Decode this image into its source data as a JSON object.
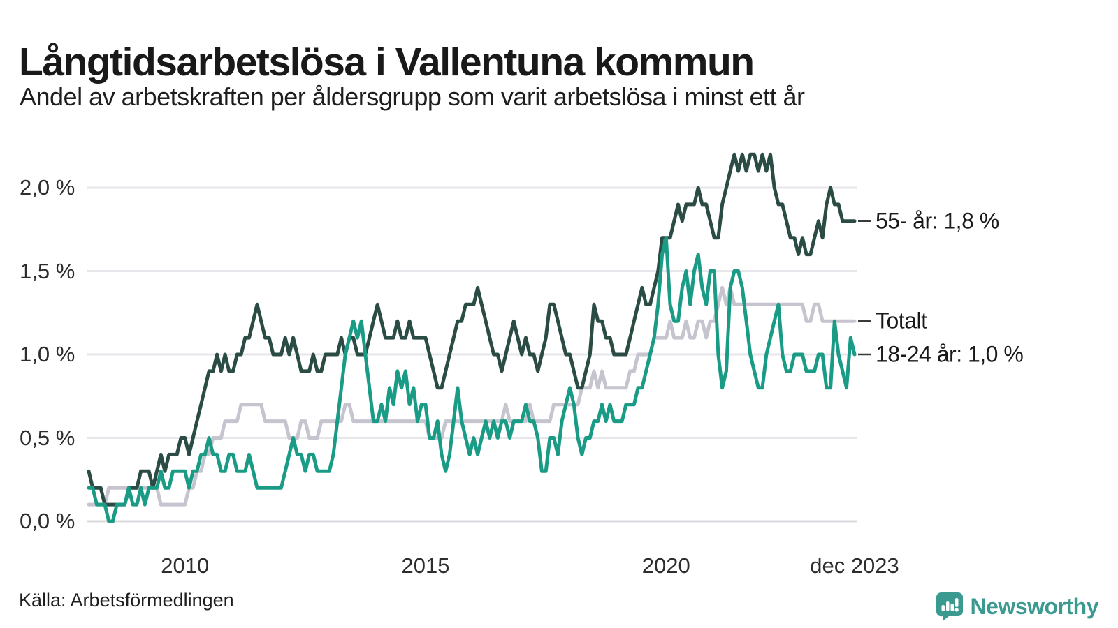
{
  "header": {
    "title": "Långtidsarbetslösa i Vallentuna kommun",
    "subtitle": "Andel av arbetskraften per åldersgrupp som varit arbetslösa i minst ett år"
  },
  "footer": {
    "source": "Källa: Arbetsförmedlingen",
    "brand": "Newsworthy"
  },
  "colors": {
    "series_55": "#2b4c45",
    "series_total": "#c6c4ce",
    "series_1824": "#1a9b86",
    "grid": "#e7e6ea",
    "grid_zero": "#dbdade",
    "connector": "#3a3a3a",
    "brand_teal": "#3b9a90"
  },
  "chart_data": {
    "type": "line",
    "title": "Långtidsarbetslösa i Vallentuna kommun",
    "subtitle": "Andel av arbetskraften per åldersgrupp som varit arbetslösa i minst ett år",
    "x_start_year": 2008,
    "x_end_year": 2023.917,
    "points_per_year": 12,
    "ylim": [
      0,
      2.3
    ],
    "grid": "horizontal-only",
    "legend_position": "right-end-labels",
    "y_ticks": [
      "0,0 %",
      "0,5 %",
      "1,0 %",
      "1,5 %",
      "2,0 %"
    ],
    "y_tick_values": [
      0,
      0.5,
      1.0,
      1.5,
      2.0
    ],
    "x_ticks": [
      "2010",
      "2015",
      "2020",
      "dec 2023"
    ],
    "x_tick_values": [
      2010,
      2015,
      2020,
      2023.917
    ],
    "draw_order": [
      1,
      0,
      2
    ],
    "series": [
      {
        "name": "55- år",
        "end_label": "55- år: 1,8 %",
        "color": "#2b4c45",
        "values": [
          0.3,
          0.2,
          0.2,
          0.2,
          0.1,
          0.1,
          0.1,
          0.1,
          0.1,
          0.1,
          0.2,
          0.2,
          0.2,
          0.3,
          0.3,
          0.3,
          0.2,
          0.3,
          0.4,
          0.3,
          0.4,
          0.4,
          0.4,
          0.5,
          0.5,
          0.4,
          0.5,
          0.6,
          0.7,
          0.8,
          0.9,
          0.9,
          1.0,
          0.9,
          1.0,
          0.9,
          0.9,
          1.0,
          1.0,
          1.1,
          1.1,
          1.2,
          1.3,
          1.2,
          1.1,
          1.1,
          1.0,
          1.0,
          1.0,
          1.1,
          1.0,
          1.1,
          1.0,
          0.9,
          0.9,
          0.9,
          1.0,
          0.9,
          0.9,
          1.0,
          1.0,
          1.0,
          1.0,
          1.1,
          1.0,
          1.1,
          1.1,
          1.0,
          1.0,
          1.0,
          1.1,
          1.2,
          1.3,
          1.2,
          1.1,
          1.1,
          1.1,
          1.2,
          1.1,
          1.1,
          1.2,
          1.1,
          1.1,
          1.1,
          1.1,
          1.0,
          0.9,
          0.8,
          0.8,
          0.9,
          1.0,
          1.1,
          1.2,
          1.2,
          1.3,
          1.3,
          1.3,
          1.4,
          1.3,
          1.2,
          1.1,
          1.0,
          1.0,
          0.9,
          1.0,
          1.1,
          1.2,
          1.1,
          1.0,
          1.1,
          1.0,
          1.0,
          0.9,
          1.0,
          1.1,
          1.3,
          1.3,
          1.2,
          1.1,
          1.0,
          1.0,
          0.9,
          0.8,
          0.8,
          0.9,
          1.0,
          1.3,
          1.2,
          1.2,
          1.1,
          1.1,
          1.0,
          1.0,
          1.0,
          1.0,
          1.1,
          1.2,
          1.3,
          1.4,
          1.3,
          1.3,
          1.4,
          1.5,
          1.7,
          1.7,
          1.7,
          1.8,
          1.9,
          1.8,
          1.9,
          1.9,
          1.9,
          2.0,
          1.9,
          1.9,
          1.8,
          1.7,
          1.7,
          1.9,
          2.0,
          2.1,
          2.2,
          2.1,
          2.2,
          2.1,
          2.2,
          2.2,
          2.1,
          2.2,
          2.1,
          2.2,
          2.0,
          1.9,
          1.9,
          1.8,
          1.7,
          1.7,
          1.6,
          1.7,
          1.6,
          1.6,
          1.7,
          1.8,
          1.7,
          1.9,
          2.0,
          1.9,
          1.9,
          1.8,
          1.8,
          1.8,
          1.8
        ]
      },
      {
        "name": "Totalt",
        "end_label": "Totalt",
        "color": "#c6c4ce",
        "values": [
          0.1,
          0.1,
          0.1,
          0.1,
          0.1,
          0.2,
          0.2,
          0.2,
          0.2,
          0.2,
          0.2,
          0.2,
          0.2,
          0.2,
          0.2,
          0.2,
          0.2,
          0.2,
          0.1,
          0.1,
          0.1,
          0.1,
          0.1,
          0.1,
          0.1,
          0.2,
          0.2,
          0.3,
          0.3,
          0.4,
          0.4,
          0.5,
          0.5,
          0.5,
          0.6,
          0.6,
          0.6,
          0.6,
          0.7,
          0.7,
          0.7,
          0.7,
          0.7,
          0.7,
          0.6,
          0.6,
          0.6,
          0.6,
          0.6,
          0.6,
          0.5,
          0.5,
          0.5,
          0.6,
          0.6,
          0.5,
          0.5,
          0.5,
          0.6,
          0.6,
          0.6,
          0.6,
          0.6,
          0.6,
          0.7,
          0.7,
          0.6,
          0.6,
          0.6,
          0.6,
          0.6,
          0.6,
          0.6,
          0.6,
          0.6,
          0.6,
          0.6,
          0.6,
          0.6,
          0.6,
          0.6,
          0.6,
          0.6,
          0.6,
          0.6,
          0.5,
          0.5,
          0.5,
          0.5,
          0.6,
          0.6,
          0.6,
          0.6,
          0.6,
          0.6,
          0.6,
          0.6,
          0.6,
          0.6,
          0.6,
          0.6,
          0.6,
          0.6,
          0.6,
          0.7,
          0.6,
          0.6,
          0.6,
          0.6,
          0.6,
          0.7,
          0.6,
          0.6,
          0.6,
          0.6,
          0.6,
          0.7,
          0.7,
          0.7,
          0.7,
          0.7,
          0.7,
          0.7,
          0.8,
          0.8,
          0.8,
          0.9,
          0.8,
          0.9,
          0.8,
          0.8,
          0.8,
          0.8,
          0.8,
          0.8,
          0.9,
          0.9,
          1.0,
          1.0,
          1.0,
          1.0,
          1.1,
          1.1,
          1.1,
          1.1,
          1.2,
          1.1,
          1.1,
          1.1,
          1.2,
          1.1,
          1.1,
          1.2,
          1.2,
          1.1,
          1.2,
          1.2,
          1.3,
          1.4,
          1.3,
          1.4,
          1.3,
          1.3,
          1.3,
          1.3,
          1.3,
          1.3,
          1.3,
          1.3,
          1.3,
          1.3,
          1.3,
          1.3,
          1.3,
          1.3,
          1.3,
          1.3,
          1.3,
          1.3,
          1.2,
          1.2,
          1.3,
          1.3,
          1.2,
          1.2,
          1.2,
          1.2,
          1.2,
          1.2,
          1.2,
          1.2,
          1.2
        ]
      },
      {
        "name": "18-24 år",
        "end_label": "18-24 år: 1,0 %",
        "color": "#1a9b86",
        "values": [
          0.2,
          0.2,
          0.1,
          0.1,
          0.1,
          0.0,
          0.0,
          0.1,
          0.1,
          0.1,
          0.2,
          0.1,
          0.1,
          0.2,
          0.1,
          0.2,
          0.2,
          0.2,
          0.3,
          0.2,
          0.2,
          0.3,
          0.3,
          0.3,
          0.3,
          0.2,
          0.3,
          0.3,
          0.4,
          0.4,
          0.5,
          0.4,
          0.4,
          0.3,
          0.3,
          0.4,
          0.4,
          0.3,
          0.3,
          0.3,
          0.4,
          0.3,
          0.2,
          0.2,
          0.2,
          0.2,
          0.2,
          0.2,
          0.2,
          0.3,
          0.4,
          0.5,
          0.4,
          0.4,
          0.3,
          0.4,
          0.4,
          0.3,
          0.3,
          0.3,
          0.3,
          0.4,
          0.6,
          0.8,
          1.0,
          1.1,
          1.2,
          1.1,
          1.2,
          1.0,
          0.8,
          0.6,
          0.6,
          0.7,
          0.6,
          0.8,
          0.7,
          0.9,
          0.8,
          0.9,
          0.7,
          0.8,
          0.6,
          0.7,
          0.7,
          0.5,
          0.5,
          0.6,
          0.4,
          0.3,
          0.4,
          0.6,
          0.8,
          0.6,
          0.5,
          0.4,
          0.5,
          0.4,
          0.5,
          0.6,
          0.5,
          0.6,
          0.5,
          0.6,
          0.6,
          0.5,
          0.6,
          0.6,
          0.6,
          0.7,
          0.6,
          0.6,
          0.5,
          0.3,
          0.3,
          0.5,
          0.5,
          0.4,
          0.6,
          0.7,
          0.8,
          0.7,
          0.5,
          0.4,
          0.5,
          0.5,
          0.6,
          0.6,
          0.7,
          0.6,
          0.7,
          0.6,
          0.6,
          0.6,
          0.7,
          0.7,
          0.7,
          0.8,
          0.8,
          0.9,
          1.0,
          1.1,
          1.3,
          1.6,
          1.7,
          1.3,
          1.2,
          1.2,
          1.4,
          1.5,
          1.3,
          1.5,
          1.6,
          1.4,
          1.3,
          1.5,
          1.5,
          1.0,
          0.8,
          0.9,
          1.4,
          1.5,
          1.5,
          1.4,
          1.2,
          1.0,
          0.9,
          0.8,
          0.8,
          1.0,
          1.1,
          1.2,
          1.3,
          1.0,
          0.9,
          0.9,
          1.0,
          1.0,
          1.0,
          0.9,
          0.9,
          0.9,
          1.0,
          1.0,
          0.8,
          0.8,
          1.2,
          1.0,
          0.9,
          0.8,
          1.1,
          1.0
        ]
      }
    ]
  }
}
